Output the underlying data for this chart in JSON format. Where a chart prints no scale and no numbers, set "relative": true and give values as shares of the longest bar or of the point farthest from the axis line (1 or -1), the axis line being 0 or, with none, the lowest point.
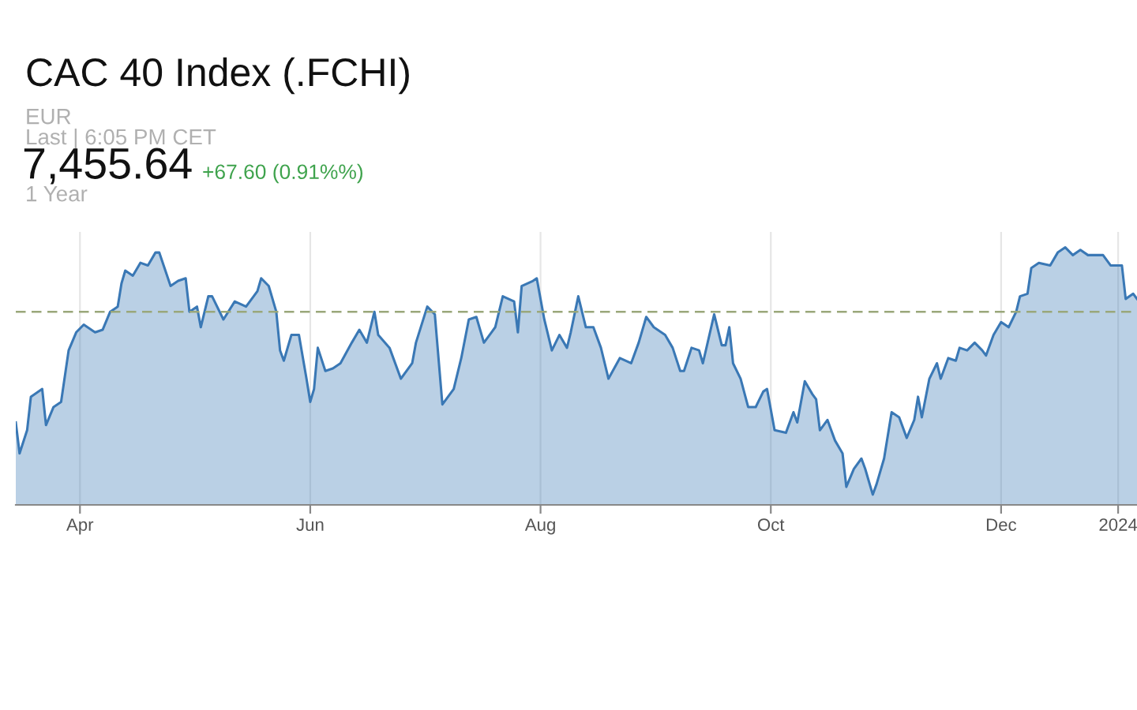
{
  "chart_data": {
    "type": "area",
    "title": "CAC 40 Index (.FCHI)",
    "relative": true,
    "annotations": [
      "EUR",
      "Last | 6:05 PM CET",
      "7,455.64",
      "+67.60 (0.91%%)",
      "1 Year"
    ],
    "xlim": [
      "2023-03-15",
      "2024-01-06"
    ],
    "xticks": [
      {
        "value": "2023-04-01",
        "label": "Apr"
      },
      {
        "value": "2023-06-01",
        "label": "Jun"
      },
      {
        "value": "2023-08-01",
        "label": "Aug"
      },
      {
        "value": "2023-10-01",
        "label": "Oct"
      },
      {
        "value": "2023-12-01",
        "label": "Dec"
      },
      {
        "value": "2024-01-01",
        "label": "2024"
      }
    ],
    "grid": "x",
    "legend": false,
    "ref_lines": [
      {
        "axis": "y",
        "value": 0.75,
        "label": null,
        "color": "#9aa77a",
        "line_style": "dashed"
      }
    ],
    "x": [
      "2023-03-15",
      "2023-03-16",
      "2023-03-18",
      "2023-03-19",
      "2023-03-22",
      "2023-03-23",
      "2023-03-25",
      "2023-03-27",
      "2023-03-29",
      "2023-03-31",
      "2023-04-02",
      "2023-04-03",
      "2023-04-05",
      "2023-04-07",
      "2023-04-09",
      "2023-04-11",
      "2023-04-12",
      "2023-04-13",
      "2023-04-15",
      "2023-04-17",
      "2023-04-19",
      "2023-04-21",
      "2023-04-22",
      "2023-04-25",
      "2023-04-27",
      "2023-04-29",
      "2023-04-30",
      "2023-05-02",
      "2023-05-03",
      "2023-05-05",
      "2023-05-06",
      "2023-05-09",
      "2023-05-12",
      "2023-05-15",
      "2023-05-18",
      "2023-05-19",
      "2023-05-21",
      "2023-05-23",
      "2023-05-24",
      "2023-05-25",
      "2023-05-27",
      "2023-05-29",
      "2023-05-31",
      "2023-06-01",
      "2023-06-02",
      "2023-06-03",
      "2023-06-05",
      "2023-06-07",
      "2023-06-09",
      "2023-06-12",
      "2023-06-14",
      "2023-06-16",
      "2023-06-18",
      "2023-06-19",
      "2023-06-22",
      "2023-06-25",
      "2023-06-28",
      "2023-06-29",
      "2023-07-02",
      "2023-07-04",
      "2023-07-06",
      "2023-07-09",
      "2023-07-11",
      "2023-07-13",
      "2023-07-15",
      "2023-07-17",
      "2023-07-19",
      "2023-07-20",
      "2023-07-22",
      "2023-07-25",
      "2023-07-26",
      "2023-07-27",
      "2023-07-30",
      "2023-07-31",
      "2023-08-02",
      "2023-08-04",
      "2023-08-06",
      "2023-08-08",
      "2023-08-09",
      "2023-08-11",
      "2023-08-13",
      "2023-08-15",
      "2023-08-17",
      "2023-08-19",
      "2023-08-22",
      "2023-08-25",
      "2023-08-27",
      "2023-08-29",
      "2023-08-31",
      "2023-09-03",
      "2023-09-05",
      "2023-09-07",
      "2023-09-08",
      "2023-09-10",
      "2023-09-12",
      "2023-09-13",
      "2023-09-16",
      "2023-09-18",
      "2023-09-19",
      "2023-09-20",
      "2023-09-21",
      "2023-09-23",
      "2023-09-25",
      "2023-09-27",
      "2023-09-29",
      "2023-09-30",
      "2023-10-02",
      "2023-10-05",
      "2023-10-07",
      "2023-10-08",
      "2023-10-10",
      "2023-10-12",
      "2023-10-13",
      "2023-10-14",
      "2023-10-16",
      "2023-10-18",
      "2023-10-20",
      "2023-10-21",
      "2023-10-23",
      "2023-10-25",
      "2023-10-26",
      "2023-10-28",
      "2023-10-29",
      "2023-10-31",
      "2023-11-02",
      "2023-11-04",
      "2023-11-06",
      "2023-11-08",
      "2023-11-09",
      "2023-11-10",
      "2023-11-12",
      "2023-11-14",
      "2023-11-15",
      "2023-11-17",
      "2023-11-19",
      "2023-11-20",
      "2023-11-22",
      "2023-11-24",
      "2023-11-26",
      "2023-11-27",
      "2023-11-29",
      "2023-12-01",
      "2023-12-03",
      "2023-12-05",
      "2023-12-06",
      "2023-12-08",
      "2023-12-09",
      "2023-12-11",
      "2023-12-14",
      "2023-12-16",
      "2023-12-18",
      "2023-12-20",
      "2023-12-22",
      "2023-12-24",
      "2023-12-28",
      "2023-12-30",
      "2024-01-02",
      "2024-01-03",
      "2024-01-05",
      "2024-01-06"
    ],
    "series": [
      {
        "color": "#3a78b5",
        "values": [
          0.32,
          0.2,
          0.29,
          0.42,
          0.45,
          0.31,
          0.38,
          0.4,
          0.6,
          0.67,
          0.7,
          0.69,
          0.67,
          0.68,
          0.75,
          0.77,
          0.86,
          0.91,
          0.89,
          0.94,
          0.93,
          0.98,
          0.98,
          0.85,
          0.87,
          0.88,
          0.75,
          0.77,
          0.69,
          0.81,
          0.81,
          0.72,
          0.79,
          0.77,
          0.83,
          0.88,
          0.85,
          0.75,
          0.6,
          0.56,
          0.66,
          0.66,
          0.49,
          0.4,
          0.45,
          0.61,
          0.52,
          0.53,
          0.55,
          0.63,
          0.68,
          0.63,
          0.75,
          0.66,
          0.61,
          0.49,
          0.55,
          0.63,
          0.77,
          0.74,
          0.39,
          0.45,
          0.57,
          0.72,
          0.73,
          0.63,
          0.67,
          0.69,
          0.81,
          0.79,
          0.67,
          0.85,
          0.87,
          0.88,
          0.72,
          0.6,
          0.66,
          0.61,
          0.67,
          0.81,
          0.69,
          0.69,
          0.61,
          0.49,
          0.57,
          0.55,
          0.63,
          0.73,
          0.69,
          0.66,
          0.61,
          0.52,
          0.52,
          0.61,
          0.6,
          0.55,
          0.74,
          0.62,
          0.62,
          0.69,
          0.55,
          0.49,
          0.38,
          0.38,
          0.44,
          0.45,
          0.29,
          0.28,
          0.36,
          0.32,
          0.48,
          0.43,
          0.41,
          0.29,
          0.33,
          0.25,
          0.2,
          0.07,
          0.14,
          0.18,
          0.14,
          0.04,
          0.08,
          0.18,
          0.36,
          0.34,
          0.26,
          0.33,
          0.42,
          0.34,
          0.49,
          0.55,
          0.49,
          0.57,
          0.56,
          0.61,
          0.6,
          0.63,
          0.6,
          0.58,
          0.66,
          0.71,
          0.69,
          0.75,
          0.81,
          0.82,
          0.92,
          0.94,
          0.93,
          0.98,
          1,
          0.97,
          0.99,
          0.97,
          0.97,
          0.93,
          0.93,
          0.8,
          0.82,
          0.8
        ]
      }
    ]
  }
}
